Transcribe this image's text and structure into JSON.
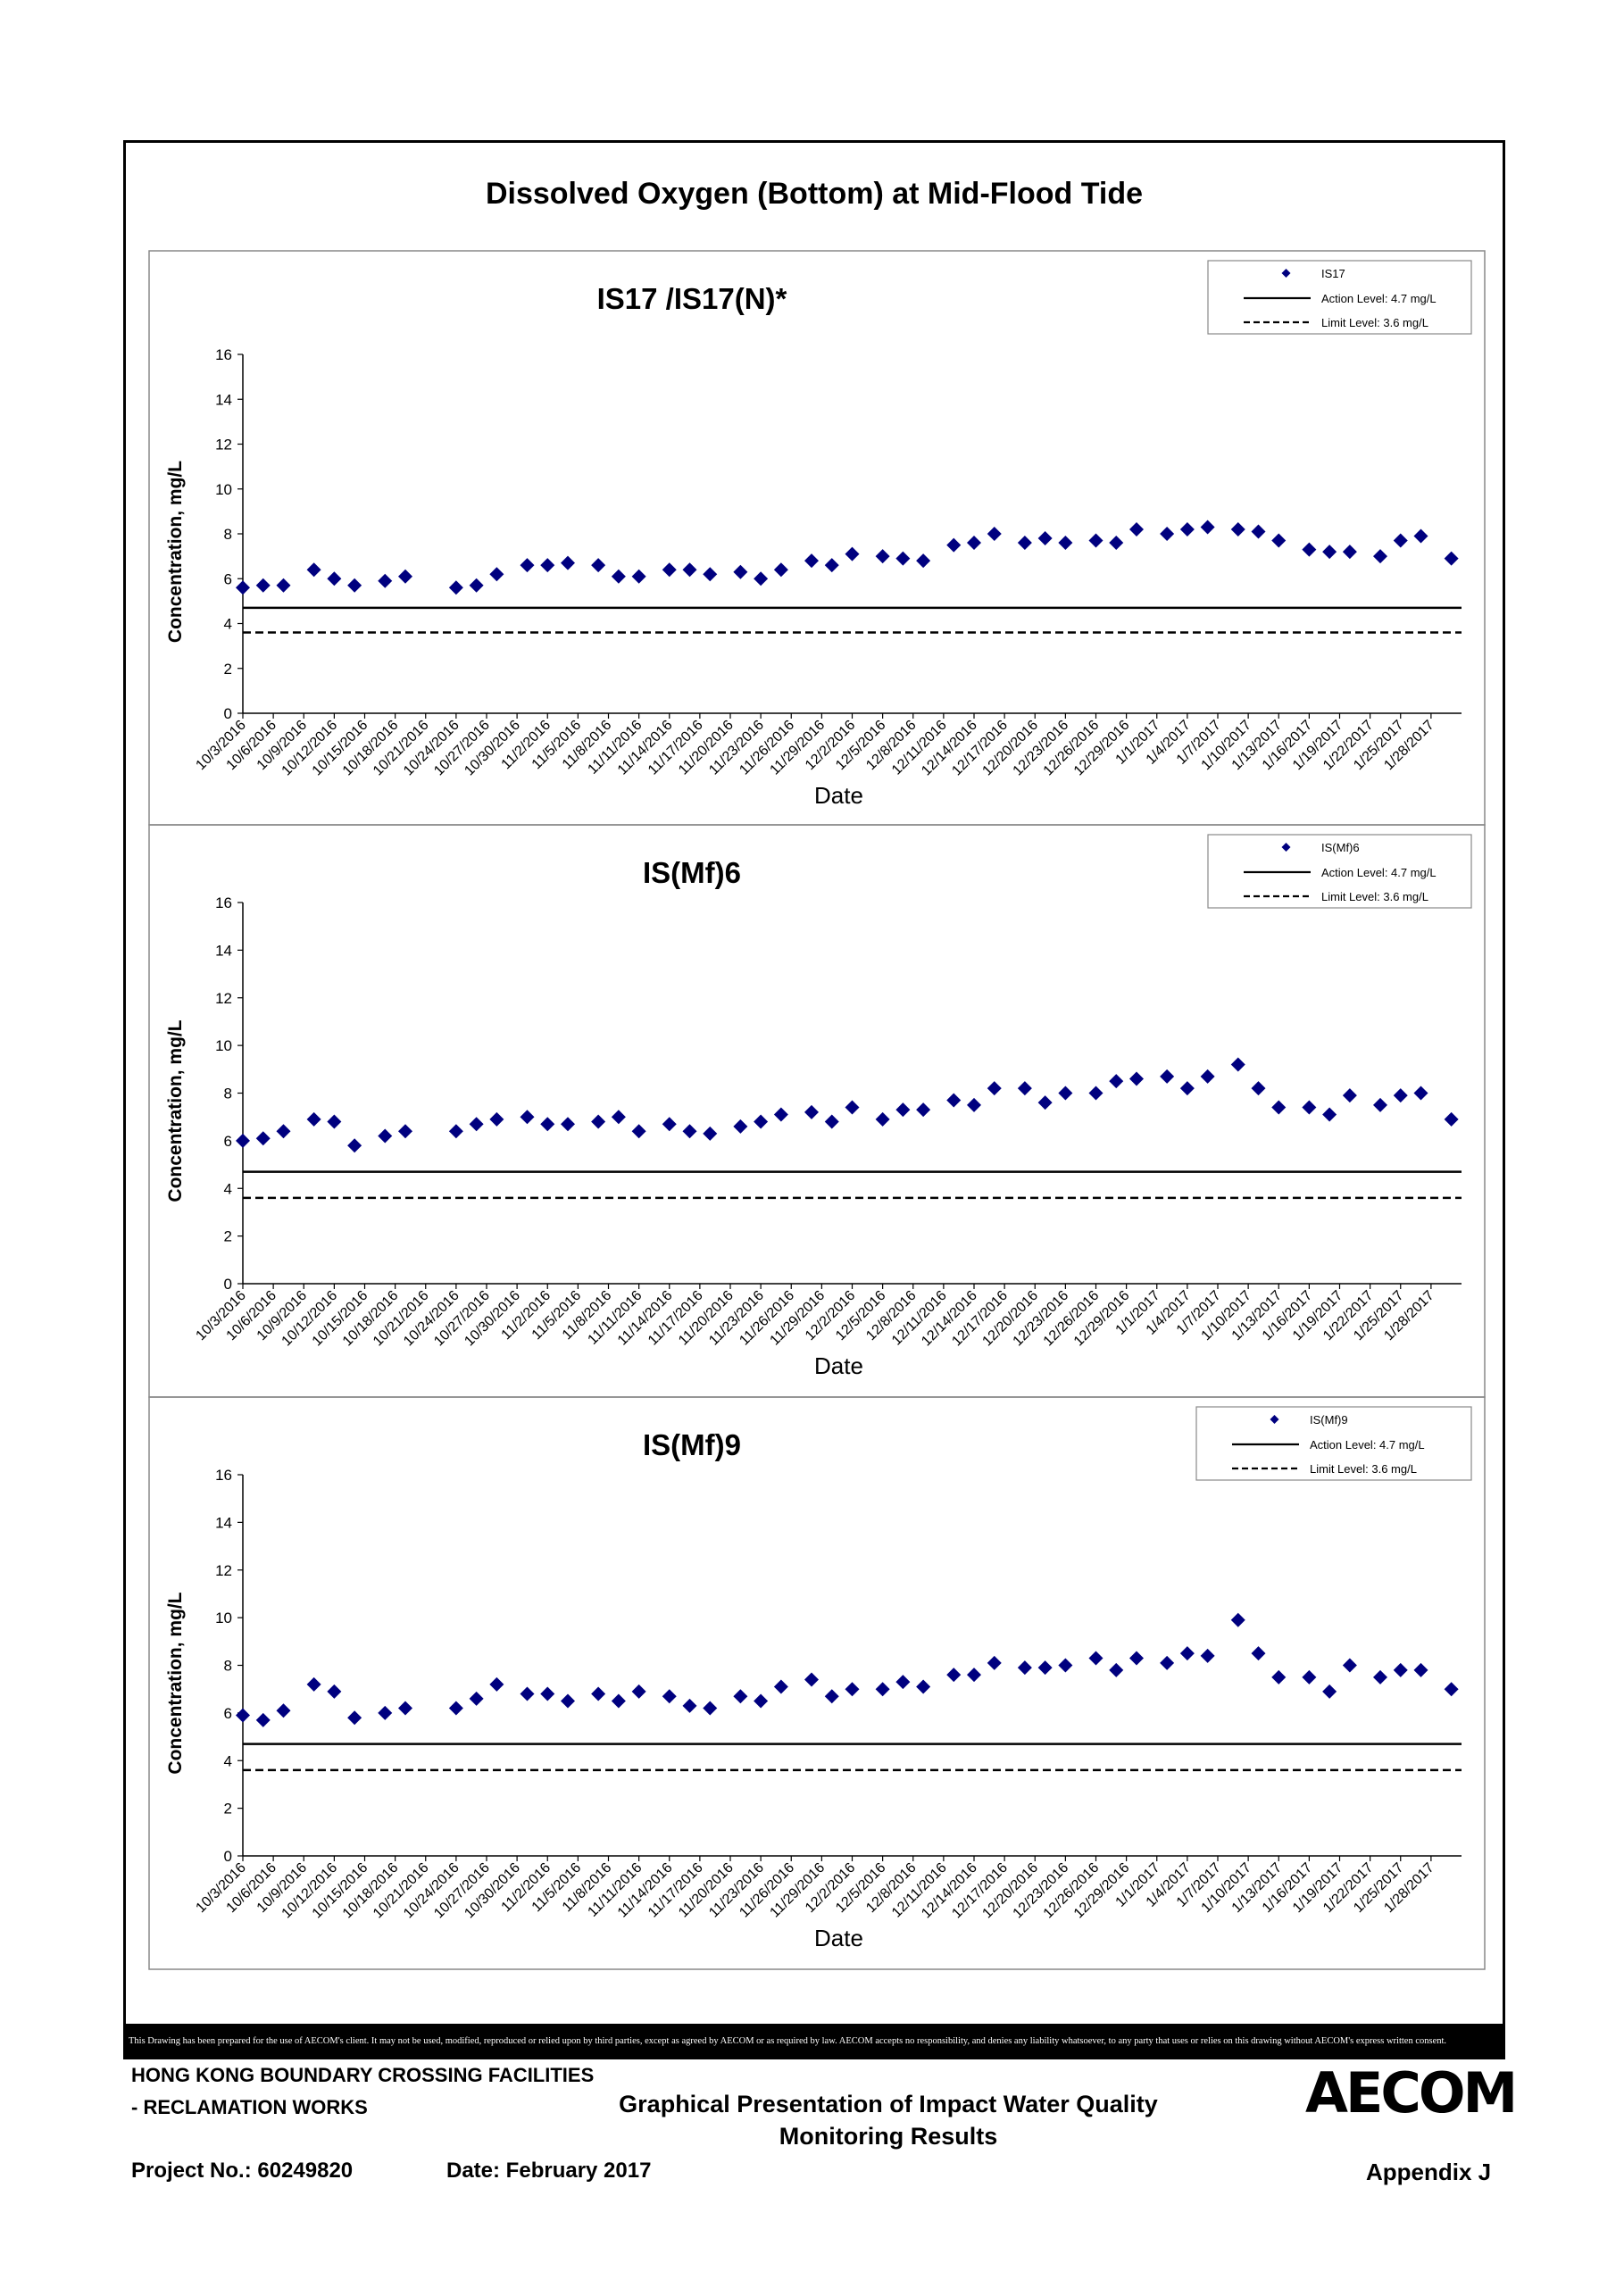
{
  "page": {
    "main_title": "Dissolved Oxygen (Bottom) at Mid-Flood Tide",
    "disclaimer": "This Drawing has been prepared for the use of AECOM's client. It may not be used, modified, reproduced or relied upon by third parties, except as agreed by AECOM or as required by law. AECOM accepts no responsibility, and denies any liability whatsoever, to any party that uses or relies on this drawing without AECOM's express written consent.",
    "footer": {
      "project_name_line1": "HONG KONG BOUNDARY CROSSING FACILITIES",
      "project_name_line2": "- RECLAMATION WORKS",
      "doc_title_line1": "Graphical Presentation of Impact Water Quality",
      "doc_title_line2": "Monitoring Results",
      "project_no": "Project No.: 60249820",
      "date": "Date: February 2017",
      "appendix": "Appendix J",
      "logo": "AECOM"
    },
    "colors": {
      "marker": "#00007f",
      "line": "#000000",
      "accent": "#000000"
    }
  },
  "chart_data": [
    {
      "type": "scatter",
      "title": "IS17 /IS17(N)*",
      "xlabel": "Date",
      "ylabel": "Concentration, mg/L",
      "ylim": [
        0,
        16
      ],
      "yticks": [
        0,
        2,
        4,
        6,
        8,
        10,
        12,
        14,
        16
      ],
      "xlim": [
        "10/3/2016",
        "1/31/2017"
      ],
      "xticks": [
        "10/3/2016",
        "10/6/2016",
        "10/9/2016",
        "10/12/2016",
        "10/15/2016",
        "10/18/2016",
        "10/21/2016",
        "10/24/2016",
        "10/27/2016",
        "10/30/2016",
        "11/2/2016",
        "11/5/2016",
        "11/8/2016",
        "11/11/2016",
        "11/14/2016",
        "11/17/2016",
        "11/20/2016",
        "11/23/2016",
        "11/26/2016",
        "11/29/2016",
        "12/2/2016",
        "12/5/2016",
        "12/8/2016",
        "12/11/2016",
        "12/14/2016",
        "12/17/2016",
        "12/20/2016",
        "12/23/2016",
        "12/26/2016",
        "12/29/2016",
        "1/1/2017",
        "1/4/2017",
        "1/7/2017",
        "1/10/2017",
        "1/13/2017",
        "1/16/2017",
        "1/19/2017",
        "1/22/2017",
        "1/25/2017",
        "1/28/2017"
      ],
      "legend_position": "top-right",
      "series": [
        {
          "name": "IS17",
          "kind": "points",
          "x": [
            "10/3/2016",
            "10/5/2016",
            "10/7/2016",
            "10/10/2016",
            "10/12/2016",
            "10/14/2016",
            "10/17/2016",
            "10/19/2016",
            "10/24/2016",
            "10/26/2016",
            "10/28/2016",
            "10/31/2016",
            "11/2/2016",
            "11/4/2016",
            "11/7/2016",
            "11/9/2016",
            "11/11/2016",
            "11/14/2016",
            "11/16/2016",
            "11/18/2016",
            "11/21/2016",
            "11/23/2016",
            "11/25/2016",
            "11/28/2016",
            "11/30/2016",
            "12/2/2016",
            "12/5/2016",
            "12/7/2016",
            "12/9/2016",
            "12/12/2016",
            "12/14/2016",
            "12/16/2016",
            "12/19/2016",
            "12/21/2016",
            "12/23/2016",
            "12/26/2016",
            "12/28/2016",
            "12/30/2016",
            "1/2/2017",
            "1/4/2017",
            "1/6/2017",
            "1/9/2017",
            "1/11/2017",
            "1/13/2017",
            "1/16/2017",
            "1/18/2017",
            "1/20/2017",
            "1/23/2017",
            "1/25/2017",
            "1/27/2017",
            "1/30/2017"
          ],
          "y": [
            5.6,
            5.7,
            5.7,
            6.4,
            6.0,
            5.7,
            5.9,
            6.1,
            5.6,
            5.7,
            6.2,
            6.6,
            6.6,
            6.7,
            6.6,
            6.1,
            6.1,
            6.4,
            6.4,
            6.2,
            6.3,
            6.0,
            6.4,
            6.8,
            6.6,
            7.1,
            7.0,
            6.9,
            6.8,
            7.5,
            7.6,
            8.0,
            7.6,
            7.8,
            7.6,
            7.7,
            7.6,
            8.2,
            8.0,
            8.2,
            8.3,
            8.2,
            8.1,
            7.7,
            7.3,
            7.2,
            7.2,
            7.0,
            7.7,
            7.9,
            6.9
          ]
        },
        {
          "name": "Action Level: 4.7 mg/L",
          "kind": "solid",
          "value": 4.7
        },
        {
          "name": "Limit Level: 3.6 mg/L",
          "kind": "dashed",
          "value": 3.6
        }
      ]
    },
    {
      "type": "scatter",
      "title": "IS(Mf)6",
      "xlabel": "Date",
      "ylabel": "Concentration, mg/L",
      "ylim": [
        0,
        16
      ],
      "yticks": [
        0,
        2,
        4,
        6,
        8,
        10,
        12,
        14,
        16
      ],
      "xlim": [
        "10/3/2016",
        "1/31/2017"
      ],
      "xticks": [
        "10/3/2016",
        "10/6/2016",
        "10/9/2016",
        "10/12/2016",
        "10/15/2016",
        "10/18/2016",
        "10/21/2016",
        "10/24/2016",
        "10/27/2016",
        "10/30/2016",
        "11/2/2016",
        "11/5/2016",
        "11/8/2016",
        "11/11/2016",
        "11/14/2016",
        "11/17/2016",
        "11/20/2016",
        "11/23/2016",
        "11/26/2016",
        "11/29/2016",
        "12/2/2016",
        "12/5/2016",
        "12/8/2016",
        "12/11/2016",
        "12/14/2016",
        "12/17/2016",
        "12/20/2016",
        "12/23/2016",
        "12/26/2016",
        "12/29/2016",
        "1/1/2017",
        "1/4/2017",
        "1/7/2017",
        "1/10/2017",
        "1/13/2017",
        "1/16/2017",
        "1/19/2017",
        "1/22/2017",
        "1/25/2017",
        "1/28/2017"
      ],
      "legend_position": "top-right",
      "series": [
        {
          "name": "IS(Mf)6",
          "kind": "points",
          "x": [
            "10/3/2016",
            "10/5/2016",
            "10/7/2016",
            "10/10/2016",
            "10/12/2016",
            "10/14/2016",
            "10/17/2016",
            "10/19/2016",
            "10/24/2016",
            "10/26/2016",
            "10/28/2016",
            "10/31/2016",
            "11/2/2016",
            "11/4/2016",
            "11/7/2016",
            "11/9/2016",
            "11/11/2016",
            "11/14/2016",
            "11/16/2016",
            "11/18/2016",
            "11/21/2016",
            "11/23/2016",
            "11/25/2016",
            "11/28/2016",
            "11/30/2016",
            "12/2/2016",
            "12/5/2016",
            "12/7/2016",
            "12/9/2016",
            "12/12/2016",
            "12/14/2016",
            "12/16/2016",
            "12/19/2016",
            "12/21/2016",
            "12/23/2016",
            "12/26/2016",
            "12/28/2016",
            "12/30/2016",
            "1/2/2017",
            "1/4/2017",
            "1/6/2017",
            "1/9/2017",
            "1/11/2017",
            "1/13/2017",
            "1/16/2017",
            "1/18/2017",
            "1/20/2017",
            "1/23/2017",
            "1/25/2017",
            "1/27/2017",
            "1/30/2017"
          ],
          "y": [
            6.0,
            6.1,
            6.4,
            6.9,
            6.8,
            5.8,
            6.2,
            6.4,
            6.4,
            6.7,
            6.9,
            7.0,
            6.7,
            6.7,
            6.8,
            7.0,
            6.4,
            6.7,
            6.4,
            6.3,
            6.6,
            6.8,
            7.1,
            7.2,
            6.8,
            7.4,
            6.9,
            7.3,
            7.3,
            7.7,
            7.5,
            8.2,
            8.2,
            7.6,
            8.0,
            8.0,
            8.5,
            8.6,
            8.7,
            8.2,
            8.7,
            9.2,
            8.2,
            7.4,
            7.4,
            7.1,
            7.9,
            7.5,
            7.9,
            8.0,
            6.9
          ]
        },
        {
          "name": "Action Level: 4.7 mg/L",
          "kind": "solid",
          "value": 4.7
        },
        {
          "name": "Limit Level: 3.6 mg/L",
          "kind": "dashed",
          "value": 3.6
        }
      ]
    },
    {
      "type": "scatter",
      "title": "IS(Mf)9",
      "xlabel": "Date",
      "ylabel": "Concentration, mg/L",
      "ylim": [
        0,
        16
      ],
      "yticks": [
        0,
        2,
        4,
        6,
        8,
        10,
        12,
        14,
        16
      ],
      "xlim": [
        "10/3/2016",
        "1/31/2017"
      ],
      "xticks": [
        "10/3/2016",
        "10/6/2016",
        "10/9/2016",
        "10/12/2016",
        "10/15/2016",
        "10/18/2016",
        "10/21/2016",
        "10/24/2016",
        "10/27/2016",
        "10/30/2016",
        "11/2/2016",
        "11/5/2016",
        "11/8/2016",
        "11/11/2016",
        "11/14/2016",
        "11/17/2016",
        "11/20/2016",
        "11/23/2016",
        "11/26/2016",
        "11/29/2016",
        "12/2/2016",
        "12/5/2016",
        "12/8/2016",
        "12/11/2016",
        "12/14/2016",
        "12/17/2016",
        "12/20/2016",
        "12/23/2016",
        "12/26/2016",
        "12/29/2016",
        "1/1/2017",
        "1/4/2017",
        "1/7/2017",
        "1/10/2017",
        "1/13/2017",
        "1/16/2017",
        "1/19/2017",
        "1/22/2017",
        "1/25/2017",
        "1/28/2017"
      ],
      "legend_position": "top-right",
      "series": [
        {
          "name": "IS(Mf)9",
          "kind": "points",
          "x": [
            "10/3/2016",
            "10/5/2016",
            "10/7/2016",
            "10/10/2016",
            "10/12/2016",
            "10/14/2016",
            "10/17/2016",
            "10/19/2016",
            "10/24/2016",
            "10/26/2016",
            "10/28/2016",
            "10/31/2016",
            "11/2/2016",
            "11/4/2016",
            "11/7/2016",
            "11/9/2016",
            "11/11/2016",
            "11/14/2016",
            "11/16/2016",
            "11/18/2016",
            "11/21/2016",
            "11/23/2016",
            "11/25/2016",
            "11/28/2016",
            "11/30/2016",
            "12/2/2016",
            "12/5/2016",
            "12/7/2016",
            "12/9/2016",
            "12/12/2016",
            "12/14/2016",
            "12/16/2016",
            "12/19/2016",
            "12/21/2016",
            "12/23/2016",
            "12/26/2016",
            "12/28/2016",
            "12/30/2016",
            "1/2/2017",
            "1/4/2017",
            "1/6/2017",
            "1/9/2017",
            "1/11/2017",
            "1/13/2017",
            "1/16/2017",
            "1/18/2017",
            "1/20/2017",
            "1/23/2017",
            "1/25/2017",
            "1/27/2017",
            "1/30/2017"
          ],
          "y": [
            5.9,
            5.7,
            6.1,
            7.2,
            6.9,
            5.8,
            6.0,
            6.2,
            6.2,
            6.6,
            7.2,
            6.8,
            6.8,
            6.5,
            6.8,
            6.5,
            6.9,
            6.7,
            6.3,
            6.2,
            6.7,
            6.5,
            7.1,
            7.4,
            6.7,
            7.0,
            7.0,
            7.3,
            7.1,
            7.6,
            7.6,
            8.1,
            7.9,
            7.9,
            8.0,
            8.3,
            7.8,
            8.3,
            8.1,
            8.5,
            8.4,
            9.9,
            8.5,
            7.5,
            7.5,
            6.9,
            8.0,
            7.5,
            7.8,
            7.8,
            7.0
          ]
        },
        {
          "name": "Action Level: 4.7 mg/L",
          "kind": "solid",
          "value": 4.7
        },
        {
          "name": "Limit Level: 3.6 mg/L",
          "kind": "dashed",
          "value": 3.6
        }
      ]
    }
  ]
}
